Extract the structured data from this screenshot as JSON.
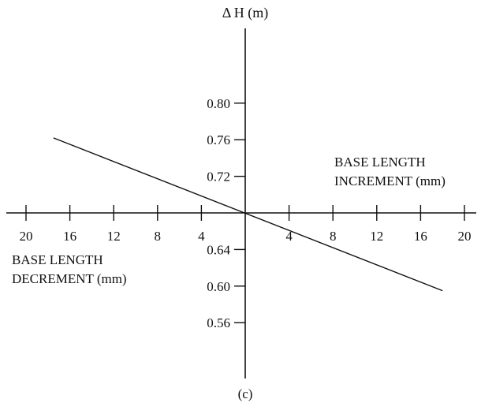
{
  "chart_data": {
    "type": "line",
    "title": "",
    "y_axis_label": "Δ H (m)",
    "x_axis_positive_label": [
      "BASE LENGTH",
      "INCREMENT (mm)"
    ],
    "x_axis_negative_label": [
      "BASE LENGTH",
      "DECREMENT (mm)"
    ],
    "caption": "(c)",
    "x_ticks_left": [
      {
        "value": -20,
        "label": "20"
      },
      {
        "value": -16,
        "label": "16"
      },
      {
        "value": -12,
        "label": "12"
      },
      {
        "value": -8,
        "label": "8"
      },
      {
        "value": -4,
        "label": "4"
      }
    ],
    "x_ticks_right": [
      {
        "value": 4,
        "label": "4"
      },
      {
        "value": 8,
        "label": "8"
      },
      {
        "value": 12,
        "label": "12"
      },
      {
        "value": 16,
        "label": "16"
      },
      {
        "value": 20,
        "label": "20"
      }
    ],
    "y_ticks": [
      {
        "value": 0.8,
        "label": "0.80"
      },
      {
        "value": 0.76,
        "label": "0.76"
      },
      {
        "value": 0.72,
        "label": "0.72"
      },
      {
        "value": 0.64,
        "label": "0.64"
      },
      {
        "value": 0.6,
        "label": "0.60"
      },
      {
        "value": 0.56,
        "label": "0.56"
      }
    ],
    "y_origin_value": 0.68,
    "xlim": [
      -21.5,
      21.5
    ],
    "ylim": [
      0.545,
      0.835
    ],
    "grid": false,
    "series": [
      {
        "points": [
          {
            "x": -17.5,
            "y": 0.762
          },
          {
            "x": 18.0,
            "y": 0.595
          }
        ]
      }
    ]
  }
}
